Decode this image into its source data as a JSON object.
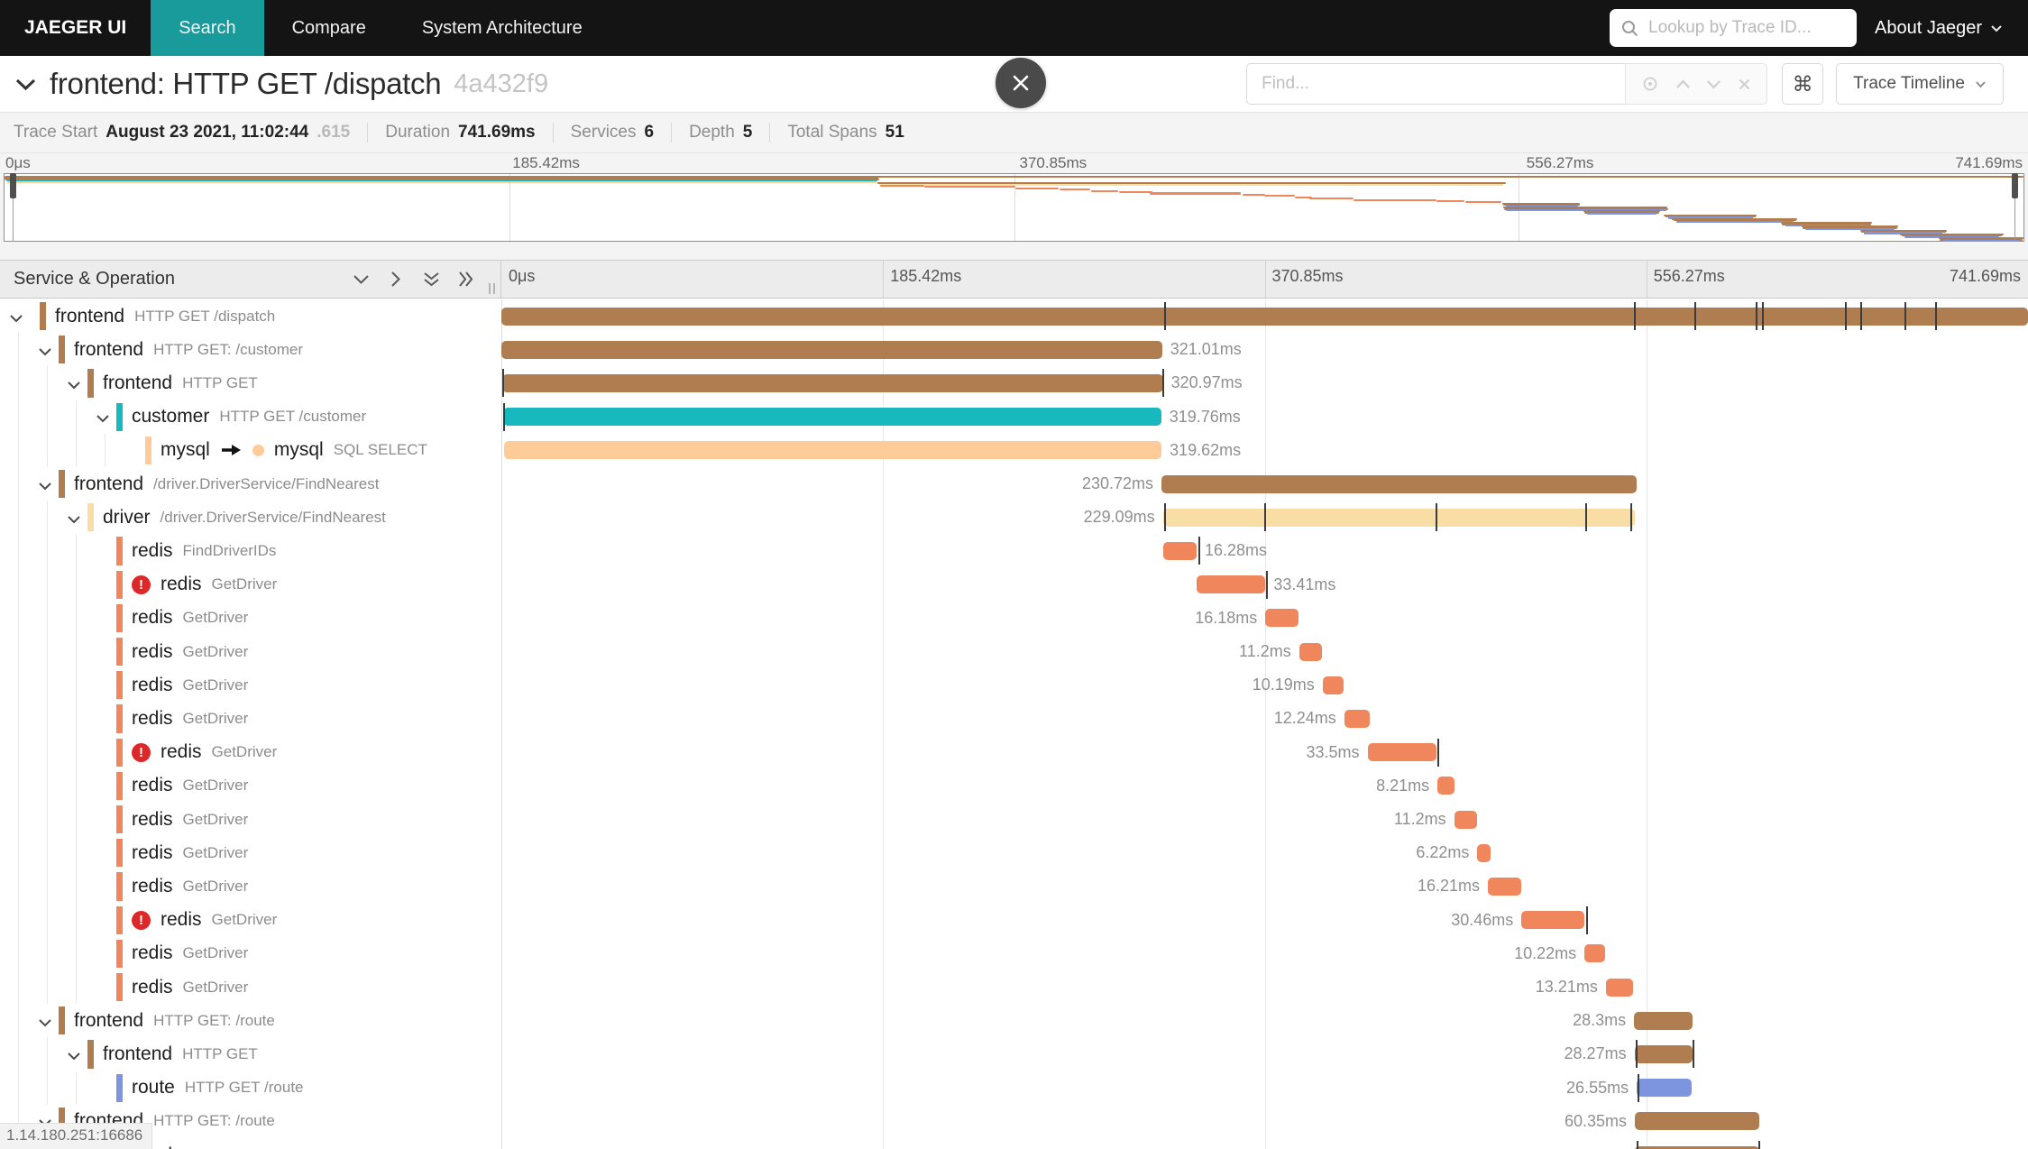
{
  "colors": {
    "brown": "#B07D51",
    "teal": "#17B8BE",
    "mysql": "#FFCB99",
    "driver": "#F8DDA4",
    "redis": "#F0865C",
    "route": "#7D94DE",
    "error": "#DB2828",
    "nav_active": "#1A9B9B"
  },
  "nav": {
    "brand": "JAEGER UI",
    "tabs": [
      {
        "label": "Search",
        "active": true
      },
      {
        "label": "Compare",
        "active": false
      },
      {
        "label": "System Architecture",
        "active": false
      }
    ],
    "lookup_placeholder": "Lookup by Trace ID...",
    "about_label": "About Jaeger"
  },
  "trace_header": {
    "title": "frontend: HTTP GET /dispatch",
    "trace_id_short": "4a432f9",
    "find_placeholder": "Find...",
    "command_symbol": "⌘",
    "view_selector_label": "Trace Timeline"
  },
  "stats": [
    {
      "label": "Trace Start",
      "value": "August 23 2021, 11:02:44",
      "suffix": ".615"
    },
    {
      "label": "Duration",
      "value": "741.69ms",
      "suffix": ""
    },
    {
      "label": "Services",
      "value": "6",
      "suffix": ""
    },
    {
      "label": "Depth",
      "value": "5",
      "suffix": ""
    },
    {
      "label": "Total Spans",
      "value": "51",
      "suffix": ""
    }
  ],
  "timeline": {
    "left_header": "Service & Operation",
    "axis_ticks": [
      "0μs",
      "185.42ms",
      "370.85ms",
      "556.27ms",
      "741.69ms"
    ],
    "trace_duration_ms": 741.69
  },
  "spans": [
    {
      "svc": "frontend",
      "op": "HTTP GET /dispatch",
      "depth": 0,
      "color": "brown",
      "start": 0,
      "dur": 741.69,
      "label": "",
      "side": "none",
      "chev": true,
      "error": false,
      "ticks": [
        322,
        550.3,
        579.8,
        609.6,
        612.6,
        652.9,
        660,
        681.6,
        696.5
      ]
    },
    {
      "svc": "frontend",
      "op": "HTTP GET: /customer",
      "depth": 1,
      "color": "brown",
      "start": 0,
      "dur": 321.01,
      "label": "321.01ms",
      "side": "right",
      "chev": true,
      "error": false,
      "ticks": []
    },
    {
      "svc": "frontend",
      "op": "HTTP GET",
      "depth": 2,
      "color": "brown",
      "start": 0.4,
      "dur": 320.97,
      "label": "320.97ms",
      "side": "right",
      "chev": true,
      "error": false,
      "ticks": [
        0.6,
        321.2
      ]
    },
    {
      "svc": "customer",
      "op": "HTTP GET /customer",
      "depth": 3,
      "color": "teal",
      "start": 0.8,
      "dur": 319.76,
      "label": "319.76ms",
      "side": "right",
      "chev": true,
      "error": false,
      "ticks": [
        1.0
      ]
    },
    {
      "svc": "mysql",
      "op": "SQL SELECT",
      "depth": 4,
      "color": "mysql",
      "start": 1.1,
      "dur": 319.62,
      "label": "319.62ms",
      "side": "right",
      "chev": false,
      "error": false,
      "ref": true,
      "ticks": []
    },
    {
      "svc": "frontend",
      "op": "/driver.DriverService/FindNearest",
      "depth": 1,
      "color": "brown",
      "start": 320.7,
      "dur": 230.72,
      "label": "230.72ms",
      "side": "left",
      "chev": true,
      "error": false,
      "ticks": []
    },
    {
      "svc": "driver",
      "op": "/driver.DriverService/FindNearest",
      "depth": 2,
      "color": "driver",
      "start": 321.4,
      "dur": 229.09,
      "label": "229.09ms",
      "side": "left",
      "chev": true,
      "error": false,
      "ticks": [
        321.9,
        370.8,
        453.8,
        526.6,
        548.3
      ]
    },
    {
      "svc": "redis",
      "op": "FindDriverIDs",
      "depth": 3,
      "color": "redis",
      "start": 321.5,
      "dur": 16.28,
      "label": "16.28ms",
      "side": "right",
      "chev": false,
      "error": false,
      "ticks": [
        338.6
      ]
    },
    {
      "svc": "redis",
      "op": "GetDriver",
      "depth": 3,
      "color": "redis",
      "start": 337.8,
      "dur": 33.41,
      "label": "33.41ms",
      "side": "right",
      "chev": false,
      "error": true,
      "ticks": [
        371.5
      ]
    },
    {
      "svc": "redis",
      "op": "GetDriver",
      "depth": 3,
      "color": "redis",
      "start": 371.2,
      "dur": 16.18,
      "label": "16.18ms",
      "side": "left",
      "chev": false,
      "error": false,
      "ticks": []
    },
    {
      "svc": "redis",
      "op": "GetDriver",
      "depth": 3,
      "color": "redis",
      "start": 387.6,
      "dur": 11.2,
      "label": "11.2ms",
      "side": "left",
      "chev": false,
      "error": false,
      "ticks": []
    },
    {
      "svc": "redis",
      "op": "GetDriver",
      "depth": 3,
      "color": "redis",
      "start": 399.0,
      "dur": 10.19,
      "label": "10.19ms",
      "side": "left",
      "chev": false,
      "error": false,
      "ticks": []
    },
    {
      "svc": "redis",
      "op": "GetDriver",
      "depth": 3,
      "color": "redis",
      "start": 409.5,
      "dur": 12.24,
      "label": "12.24ms",
      "side": "left",
      "chev": false,
      "error": false,
      "ticks": []
    },
    {
      "svc": "redis",
      "op": "GetDriver",
      "depth": 3,
      "color": "redis",
      "start": 420.8,
      "dur": 33.5,
      "label": "33.5ms",
      "side": "left",
      "chev": false,
      "error": true,
      "ticks": [
        454.8
      ]
    },
    {
      "svc": "redis",
      "op": "GetDriver",
      "depth": 3,
      "color": "redis",
      "start": 454.8,
      "dur": 8.21,
      "label": "8.21ms",
      "side": "left",
      "chev": false,
      "error": false,
      "ticks": []
    },
    {
      "svc": "redis",
      "op": "GetDriver",
      "depth": 3,
      "color": "redis",
      "start": 462.9,
      "dur": 11.2,
      "label": "11.2ms",
      "side": "left",
      "chev": false,
      "error": false,
      "ticks": []
    },
    {
      "svc": "redis",
      "op": "GetDriver",
      "depth": 3,
      "color": "redis",
      "start": 474.2,
      "dur": 6.22,
      "label": "6.22ms",
      "side": "left",
      "chev": false,
      "error": false,
      "ticks": []
    },
    {
      "svc": "redis",
      "op": "GetDriver",
      "depth": 3,
      "color": "redis",
      "start": 479.3,
      "dur": 16.21,
      "label": "16.21ms",
      "side": "left",
      "chev": false,
      "error": false,
      "ticks": []
    },
    {
      "svc": "redis",
      "op": "GetDriver",
      "depth": 3,
      "color": "redis",
      "start": 495.6,
      "dur": 30.46,
      "label": "30.46ms",
      "side": "left",
      "chev": false,
      "error": true,
      "ticks": [
        527.0
      ]
    },
    {
      "svc": "redis",
      "op": "GetDriver",
      "depth": 3,
      "color": "redis",
      "start": 526.2,
      "dur": 10.22,
      "label": "10.22ms",
      "side": "left",
      "chev": false,
      "error": false,
      "ticks": []
    },
    {
      "svc": "redis",
      "op": "GetDriver",
      "depth": 3,
      "color": "redis",
      "start": 536.6,
      "dur": 13.21,
      "label": "13.21ms",
      "side": "left",
      "chev": false,
      "error": false,
      "ticks": []
    },
    {
      "svc": "frontend",
      "op": "HTTP GET: /route",
      "depth": 1,
      "color": "brown",
      "start": 550.3,
      "dur": 28.3,
      "label": "28.3ms",
      "side": "left",
      "chev": true,
      "error": false,
      "ticks": []
    },
    {
      "svc": "frontend",
      "op": "HTTP GET",
      "depth": 2,
      "color": "brown",
      "start": 550.5,
      "dur": 28.27,
      "label": "28.27ms",
      "side": "left",
      "chev": true,
      "error": false,
      "ticks": [
        551.0,
        578.9
      ]
    },
    {
      "svc": "route",
      "op": "HTTP GET /route",
      "depth": 3,
      "color": "route",
      "start": 551.6,
      "dur": 26.55,
      "label": "26.55ms",
      "side": "left",
      "chev": false,
      "error": false,
      "ticks": [
        551.9
      ]
    },
    {
      "svc": "frontend",
      "op": "HTTP GET: /route",
      "depth": 1,
      "color": "brown",
      "start": 550.7,
      "dur": 60.35,
      "label": "60.35ms",
      "side": "left",
      "chev": true,
      "error": false,
      "ticks": []
    },
    {
      "svc": "frontend",
      "op": "HTTP GET",
      "depth": 2,
      "color": "brown",
      "start": 550.9,
      "dur": 60.3,
      "label": "",
      "side": "none",
      "chev": true,
      "error": false,
      "ticks": [
        551.4,
        610.9
      ]
    }
  ],
  "minimap": {
    "spans": [
      [
        0,
        1,
        "brown"
      ],
      [
        0,
        0.4329,
        "brown"
      ],
      [
        0.0005,
        0.4333,
        "brown"
      ],
      [
        0.0011,
        0.4323,
        "teal"
      ],
      [
        0.0015,
        0.4324,
        "mysql"
      ],
      [
        0.4324,
        0.7435,
        "brown"
      ],
      [
        0.4333,
        0.7422,
        "driver"
      ],
      [
        0.4335,
        0.4554,
        "redis"
      ],
      [
        0.4555,
        0.5005,
        "redis"
      ],
      [
        0.5005,
        0.5223,
        "redis"
      ],
      [
        0.5226,
        0.5377,
        "redis"
      ],
      [
        0.538,
        0.5517,
        "redis"
      ],
      [
        0.5521,
        0.5686,
        "redis"
      ],
      [
        0.5673,
        0.6125,
        "redis"
      ],
      [
        0.6132,
        0.6243,
        "redis"
      ],
      [
        0.6241,
        0.6392,
        "redis"
      ],
      [
        0.6393,
        0.6477,
        "redis"
      ],
      [
        0.6462,
        0.6681,
        "redis"
      ],
      [
        0.6682,
        0.7092,
        "redis"
      ],
      [
        0.7094,
        0.7232,
        "redis"
      ],
      [
        0.7235,
        0.7413,
        "redis"
      ],
      [
        0.7419,
        0.7801,
        "brown"
      ],
      [
        0.7422,
        0.7803,
        "brown"
      ],
      [
        0.7437,
        0.7795,
        "route"
      ],
      [
        0.7424,
        0.8238,
        "brown"
      ],
      [
        0.7427,
        0.824,
        "brown"
      ],
      [
        0.7437,
        0.8232,
        "route"
      ],
      [
        0.782,
        0.82,
        "brown"
      ],
      [
        0.7825,
        0.8195,
        "brown"
      ],
      [
        0.784,
        0.818,
        "route"
      ],
      [
        0.822,
        0.868,
        "brown"
      ],
      [
        0.8225,
        0.8675,
        "brown"
      ],
      [
        0.824,
        0.866,
        "route"
      ],
      [
        0.826,
        0.888,
        "brown"
      ],
      [
        0.8265,
        0.8875,
        "brown"
      ],
      [
        0.828,
        0.886,
        "route"
      ],
      [
        0.88,
        0.925,
        "brown"
      ],
      [
        0.8805,
        0.9245,
        "brown"
      ],
      [
        0.882,
        0.923,
        "route"
      ],
      [
        0.89,
        0.938,
        "brown"
      ],
      [
        0.8905,
        0.9375,
        "brown"
      ],
      [
        0.892,
        0.936,
        "route"
      ],
      [
        0.919,
        0.962,
        "brown"
      ],
      [
        0.9195,
        0.9615,
        "brown"
      ],
      [
        0.921,
        0.96,
        "route"
      ],
      [
        0.939,
        0.99,
        "brown"
      ],
      [
        0.9395,
        0.9895,
        "brown"
      ],
      [
        0.941,
        0.988,
        "route"
      ],
      [
        0.958,
        1.0,
        "brown"
      ],
      [
        0.9585,
        0.9995,
        "brown"
      ],
      [
        0.96,
        0.998,
        "route"
      ]
    ]
  },
  "status_bar": "1.14.180.251:16686"
}
